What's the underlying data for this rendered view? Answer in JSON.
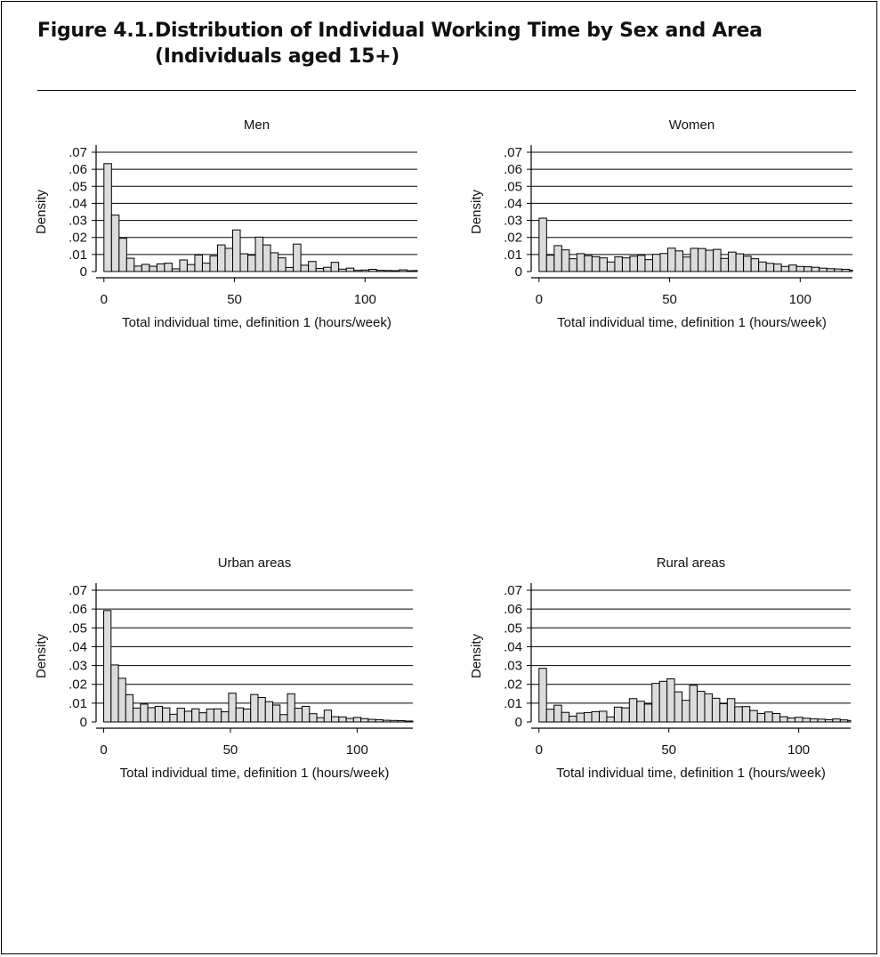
{
  "figure": {
    "label": "Figure 4.1.",
    "title_line1": "Distribution of Individual Working Time by Sex and Area",
    "title_line2": "(Individuals aged 15+)"
  },
  "colors": {
    "bar_fill": "#dcdcdc",
    "bar_stroke": "#000000",
    "grid": "#000000"
  },
  "chart_data": [
    {
      "type": "bar",
      "title": "Men",
      "xlabel": "Total individual time, definition 1 (hours/week)",
      "ylabel": "Density",
      "xlim": [
        -3,
        120
      ],
      "ylim": [
        0,
        0.07
      ],
      "xticks": [
        0,
        50,
        100
      ],
      "xtick_labels": [
        "0",
        "50",
        "100"
      ],
      "yticks": [
        0,
        0.01,
        0.02,
        0.03,
        0.04,
        0.05,
        0.06,
        0.07
      ],
      "ytick_labels": [
        "0",
        ".01",
        ".02",
        ".03",
        ".04",
        ".05",
        ".06",
        ".07"
      ],
      "grid": true,
      "bin_start": 0,
      "bin_width": 2.9,
      "values": [
        0.0633,
        0.0331,
        0.0195,
        0.0078,
        0.0032,
        0.0042,
        0.0031,
        0.0045,
        0.0049,
        0.0016,
        0.0068,
        0.0041,
        0.0097,
        0.0049,
        0.0092,
        0.0156,
        0.0136,
        0.0244,
        0.0104,
        0.0096,
        0.0202,
        0.0156,
        0.011,
        0.008,
        0.0024,
        0.0161,
        0.0037,
        0.0059,
        0.0018,
        0.0025,
        0.0054,
        0.0014,
        0.002,
        0.0007,
        0.0009,
        0.0013,
        0.0007,
        0.0006,
        0.0005,
        0.001,
        0.0005,
        0.0006
      ]
    },
    {
      "type": "bar",
      "title": "Women",
      "xlabel": "Total individual time, definition 1 (hours/week)",
      "ylabel": "Density",
      "xlim": [
        -3,
        120
      ],
      "ylim": [
        0,
        0.07
      ],
      "xticks": [
        0,
        50,
        100
      ],
      "xtick_labels": [
        "0",
        "50",
        "100"
      ],
      "yticks": [
        0,
        0.01,
        0.02,
        0.03,
        0.04,
        0.05,
        0.06,
        0.07
      ],
      "ytick_labels": [
        "0",
        ".01",
        ".02",
        ".03",
        ".04",
        ".05",
        ".06",
        ".07"
      ],
      "grid": true,
      "bin_start": 0,
      "bin_width": 2.9,
      "values": [
        0.0313,
        0.0096,
        0.0152,
        0.0127,
        0.0075,
        0.0105,
        0.0093,
        0.0087,
        0.008,
        0.0056,
        0.0086,
        0.008,
        0.009,
        0.0095,
        0.007,
        0.0101,
        0.0106,
        0.0137,
        0.0121,
        0.0085,
        0.0136,
        0.0135,
        0.0125,
        0.013,
        0.0077,
        0.0114,
        0.0104,
        0.009,
        0.0075,
        0.0056,
        0.0048,
        0.0044,
        0.003,
        0.0038,
        0.003,
        0.0028,
        0.0025,
        0.002,
        0.0017,
        0.0015,
        0.0013,
        0.0008
      ]
    },
    {
      "type": "bar",
      "title": "Urban areas",
      "xlabel": "Total individual time, definition 1 (hours/week)",
      "ylabel": "Density",
      "xlim": [
        -3,
        122
      ],
      "ylim": [
        0,
        0.07
      ],
      "xticks": [
        0,
        50,
        100
      ],
      "xtick_labels": [
        "0",
        "50",
        "100"
      ],
      "yticks": [
        0,
        0.01,
        0.02,
        0.03,
        0.04,
        0.05,
        0.06,
        0.07
      ],
      "ytick_labels": [
        "0",
        ".01",
        ".02",
        ".03",
        ".04",
        ".05",
        ".06",
        ".07"
      ],
      "grid": true,
      "bin_start": 0,
      "bin_width": 2.9,
      "values": [
        0.0592,
        0.0303,
        0.0232,
        0.0145,
        0.0074,
        0.0095,
        0.0076,
        0.0083,
        0.0075,
        0.0041,
        0.0073,
        0.0057,
        0.007,
        0.0049,
        0.0069,
        0.007,
        0.0054,
        0.0153,
        0.0075,
        0.0069,
        0.0146,
        0.013,
        0.0108,
        0.009,
        0.0039,
        0.015,
        0.0073,
        0.0083,
        0.0044,
        0.0023,
        0.0063,
        0.0028,
        0.0027,
        0.0019,
        0.0024,
        0.0018,
        0.0014,
        0.0012,
        0.0009,
        0.0008,
        0.0007,
        0.0005,
        0.0004
      ]
    },
    {
      "type": "bar",
      "title": "Rural areas",
      "xlabel": "Total individual time, definition 1 (hours/week)",
      "ylabel": "Density",
      "xlim": [
        -3,
        120
      ],
      "ylim": [
        0,
        0.07
      ],
      "xticks": [
        0,
        50,
        100
      ],
      "xtick_labels": [
        "0",
        "50",
        "100"
      ],
      "yticks": [
        0,
        0.01,
        0.02,
        0.03,
        0.04,
        0.05,
        0.06,
        0.07
      ],
      "ytick_labels": [
        "0",
        ".01",
        ".02",
        ".03",
        ".04",
        ".05",
        ".06",
        ".07"
      ],
      "grid": true,
      "bin_start": 0,
      "bin_width": 2.9,
      "values": [
        0.0285,
        0.0068,
        0.0089,
        0.0051,
        0.0031,
        0.0047,
        0.005,
        0.0055,
        0.0057,
        0.0027,
        0.0079,
        0.0075,
        0.0124,
        0.011,
        0.0095,
        0.0205,
        0.0216,
        0.0229,
        0.016,
        0.0115,
        0.0195,
        0.0163,
        0.015,
        0.0126,
        0.0097,
        0.0124,
        0.0081,
        0.0082,
        0.0061,
        0.0045,
        0.0053,
        0.0045,
        0.0028,
        0.0021,
        0.0025,
        0.002,
        0.0017,
        0.0015,
        0.0012,
        0.0016,
        0.0011,
        0.0008,
        0.0008
      ]
    }
  ]
}
